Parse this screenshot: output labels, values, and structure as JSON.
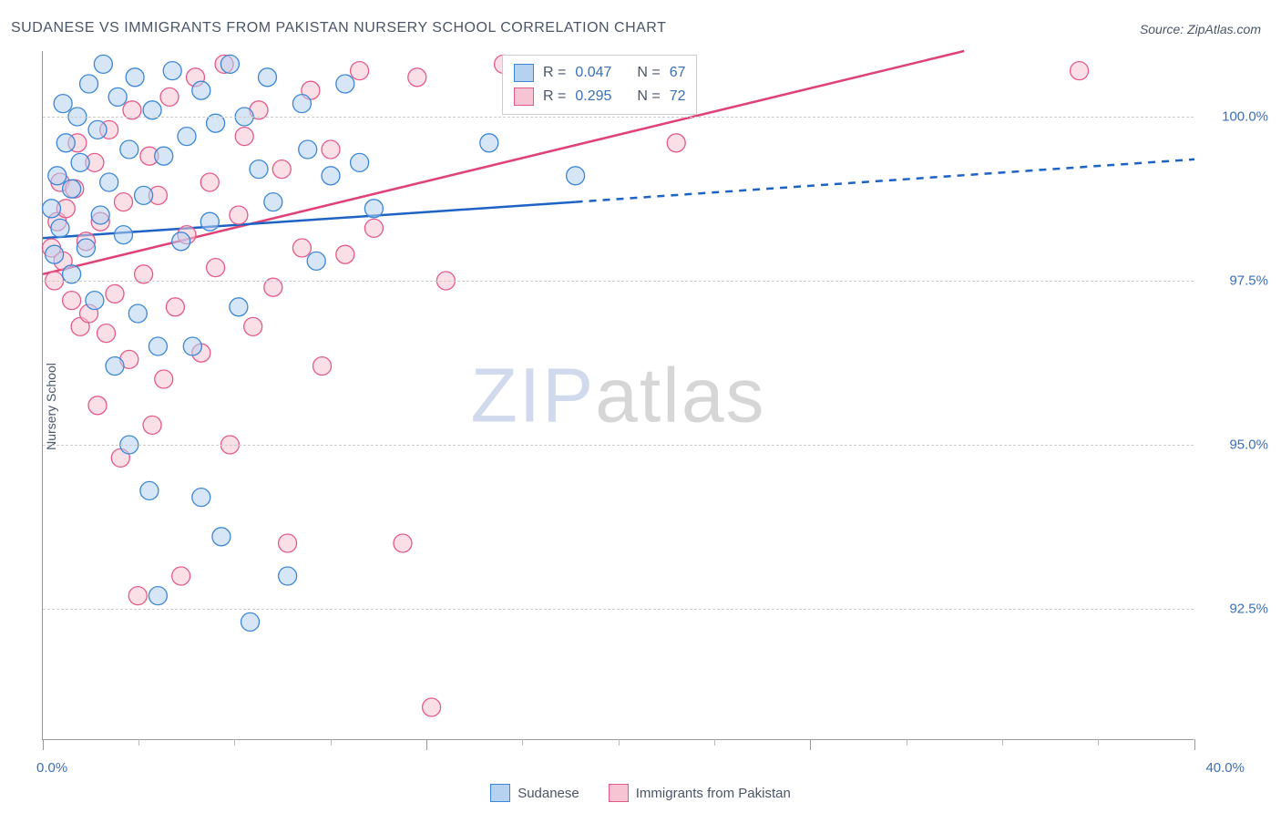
{
  "title": "SUDANESE VS IMMIGRANTS FROM PAKISTAN NURSERY SCHOOL CORRELATION CHART",
  "source_prefix": "Source: ",
  "source_name": "ZipAtlas.com",
  "ylabel": "Nursery School",
  "watermark": {
    "a": "ZIP",
    "b": "atlas"
  },
  "colors": {
    "series_a_fill": "#b6d2f0",
    "series_a_stroke": "#3b86d6",
    "series_b_fill": "#f6c4d2",
    "series_b_stroke": "#e35a8a",
    "line_a": "#1e63c4",
    "line_b": "#e04176",
    "grid": "#cccccc",
    "axis_text": "#3b6fb6",
    "title_text": "#4a5568"
  },
  "chart": {
    "type": "scatter",
    "x_domain": [
      0,
      40
    ],
    "y_domain": [
      90.5,
      101
    ],
    "y_gridlines": [
      92.5,
      95.0,
      97.5,
      100.0
    ],
    "y_tick_labels": [
      "92.5%",
      "95.0%",
      "97.5%",
      "100.0%"
    ],
    "x_min_label": "0.0%",
    "x_max_label": "40.0%",
    "x_major_ticks": [
      0,
      13.33,
      26.66,
      40
    ],
    "x_minor_ticks": [
      3.33,
      6.66,
      10,
      16.66,
      20,
      23.33,
      30,
      33.33,
      36.66
    ],
    "marker_radius": 10,
    "marker_opacity": 0.55,
    "line_width": 2.5,
    "legend_top": {
      "rows": [
        {
          "swatch_fill": "#b6d2f0",
          "swatch_stroke": "#3b86d6",
          "r": "0.047",
          "n": "67"
        },
        {
          "swatch_fill": "#f6c4d2",
          "swatch_stroke": "#e35a8a",
          "r": "0.295",
          "n": "72"
        }
      ],
      "r_label": "R =",
      "n_label": "N ="
    },
    "legend_bottom": [
      {
        "swatch_fill": "#b6d2f0",
        "swatch_stroke": "#3b86d6",
        "label": "Sudanese"
      },
      {
        "swatch_fill": "#f6c4d2",
        "swatch_stroke": "#e35a8a",
        "label": "Immigrants from Pakistan"
      }
    ],
    "series_a": {
      "trend": {
        "solid": [
          [
            0,
            98.15
          ],
          [
            18.5,
            98.7
          ]
        ],
        "dashed": [
          [
            18.5,
            98.7
          ],
          [
            40,
            99.35
          ]
        ]
      },
      "points": [
        [
          0.3,
          98.6
        ],
        [
          0.4,
          97.9
        ],
        [
          0.5,
          99.1
        ],
        [
          0.6,
          98.3
        ],
        [
          0.7,
          100.2
        ],
        [
          0.8,
          99.6
        ],
        [
          1.0,
          97.6
        ],
        [
          1.0,
          98.9
        ],
        [
          1.2,
          100.0
        ],
        [
          1.3,
          99.3
        ],
        [
          1.5,
          98.0
        ],
        [
          1.6,
          100.5
        ],
        [
          1.8,
          97.2
        ],
        [
          1.9,
          99.8
        ],
        [
          2.0,
          98.5
        ],
        [
          2.1,
          100.8
        ],
        [
          2.3,
          99.0
        ],
        [
          2.5,
          96.2
        ],
        [
          2.6,
          100.3
        ],
        [
          2.8,
          98.2
        ],
        [
          3.0,
          99.5
        ],
        [
          3.0,
          95.0
        ],
        [
          3.2,
          100.6
        ],
        [
          3.3,
          97.0
        ],
        [
          3.5,
          98.8
        ],
        [
          3.7,
          94.3
        ],
        [
          3.8,
          100.1
        ],
        [
          4.0,
          96.5
        ],
        [
          4.0,
          92.7
        ],
        [
          4.2,
          99.4
        ],
        [
          4.5,
          100.7
        ],
        [
          4.8,
          98.1
        ],
        [
          5.0,
          99.7
        ],
        [
          5.2,
          96.5
        ],
        [
          5.5,
          100.4
        ],
        [
          5.5,
          94.2
        ],
        [
          5.8,
          98.4
        ],
        [
          6.0,
          99.9
        ],
        [
          6.2,
          93.6
        ],
        [
          6.5,
          100.8
        ],
        [
          6.8,
          97.1
        ],
        [
          7.0,
          100.0
        ],
        [
          7.2,
          92.3
        ],
        [
          7.5,
          99.2
        ],
        [
          7.8,
          100.6
        ],
        [
          8.0,
          98.7
        ],
        [
          8.5,
          93.0
        ],
        [
          9.0,
          100.2
        ],
        [
          9.2,
          99.5
        ],
        [
          9.5,
          97.8
        ],
        [
          10.0,
          99.1
        ],
        [
          10.5,
          100.5
        ],
        [
          11.0,
          99.3
        ],
        [
          11.5,
          98.6
        ],
        [
          15.5,
          99.6
        ],
        [
          18.5,
          99.1
        ]
      ]
    },
    "series_b": {
      "trend": {
        "solid": [
          [
            0,
            97.6
          ],
          [
            32,
            101.0
          ]
        ]
      },
      "points": [
        [
          0.3,
          98.0
        ],
        [
          0.4,
          97.5
        ],
        [
          0.5,
          98.4
        ],
        [
          0.6,
          99.0
        ],
        [
          0.7,
          97.8
        ],
        [
          0.8,
          98.6
        ],
        [
          1.0,
          97.2
        ],
        [
          1.1,
          98.9
        ],
        [
          1.2,
          99.6
        ],
        [
          1.3,
          96.8
        ],
        [
          1.5,
          98.1
        ],
        [
          1.6,
          97.0
        ],
        [
          1.8,
          99.3
        ],
        [
          1.9,
          95.6
        ],
        [
          2.0,
          98.4
        ],
        [
          2.2,
          96.7
        ],
        [
          2.3,
          99.8
        ],
        [
          2.5,
          97.3
        ],
        [
          2.7,
          94.8
        ],
        [
          2.8,
          98.7
        ],
        [
          3.0,
          96.3
        ],
        [
          3.1,
          100.1
        ],
        [
          3.3,
          92.7
        ],
        [
          3.5,
          97.6
        ],
        [
          3.7,
          99.4
        ],
        [
          3.8,
          95.3
        ],
        [
          4.0,
          98.8
        ],
        [
          4.2,
          96.0
        ],
        [
          4.4,
          100.3
        ],
        [
          4.6,
          97.1
        ],
        [
          4.8,
          93.0
        ],
        [
          5.0,
          98.2
        ],
        [
          5.3,
          100.6
        ],
        [
          5.5,
          96.4
        ],
        [
          5.8,
          99.0
        ],
        [
          6.0,
          97.7
        ],
        [
          6.3,
          100.8
        ],
        [
          6.5,
          95.0
        ],
        [
          6.8,
          98.5
        ],
        [
          7.0,
          99.7
        ],
        [
          7.3,
          96.8
        ],
        [
          7.5,
          100.1
        ],
        [
          8.0,
          97.4
        ],
        [
          8.3,
          99.2
        ],
        [
          8.5,
          93.5
        ],
        [
          9.0,
          98.0
        ],
        [
          9.3,
          100.4
        ],
        [
          9.7,
          96.2
        ],
        [
          10.0,
          99.5
        ],
        [
          10.5,
          97.9
        ],
        [
          11.0,
          100.7
        ],
        [
          11.5,
          98.3
        ],
        [
          12.5,
          93.5
        ],
        [
          13.0,
          100.6
        ],
        [
          13.5,
          91.0
        ],
        [
          14.0,
          97.5
        ],
        [
          16.0,
          100.8
        ],
        [
          21.0,
          100.7
        ],
        [
          22.0,
          99.6
        ],
        [
          36.0,
          100.7
        ]
      ]
    }
  }
}
